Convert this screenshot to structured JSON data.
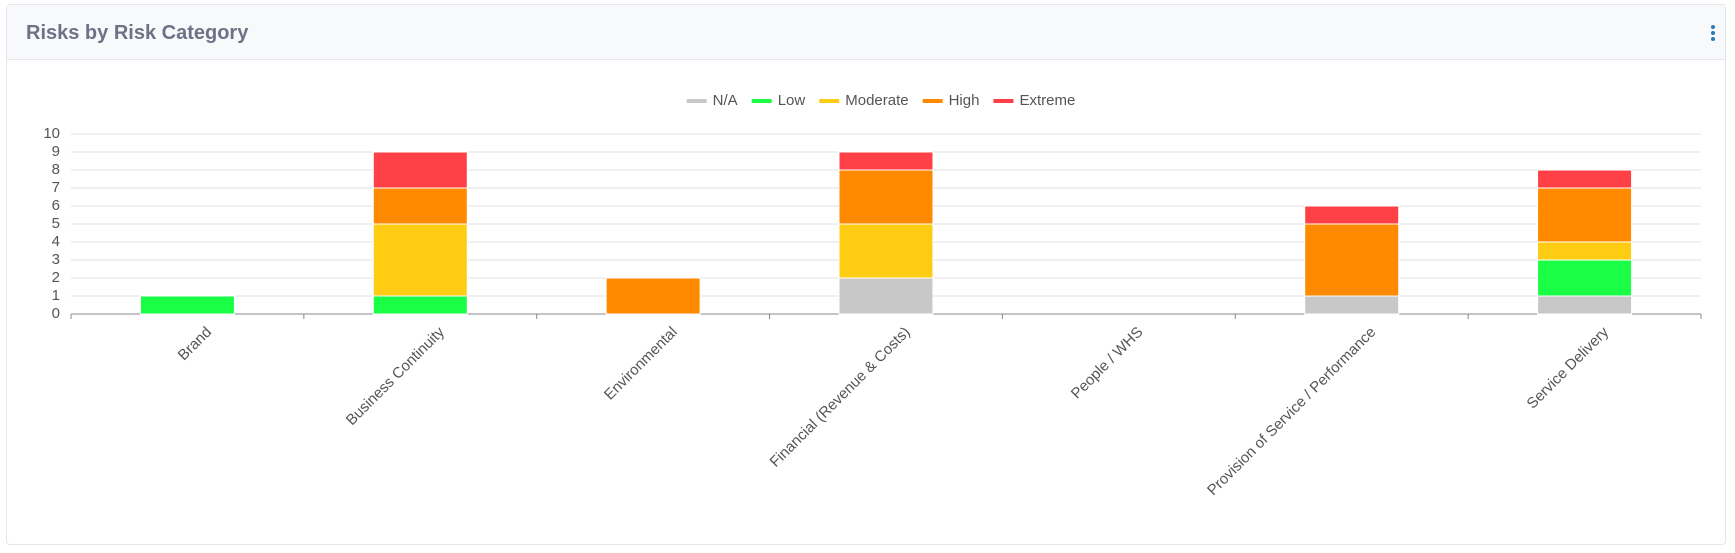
{
  "chart_data": {
    "type": "stacked_bar",
    "title": "Risks by Risk Category",
    "categories": [
      "Brand",
      "Business Continuity",
      "Environmental",
      "Financial (Revenue & Costs)",
      "People / WHS",
      "Provision of Service / Performance",
      "Service Delivery"
    ],
    "series": [
      {
        "name": "N/A",
        "color": "#c8c8c8",
        "values": [
          0,
          0,
          0,
          2,
          0,
          1,
          1
        ]
      },
      {
        "name": "Low",
        "color": "#1aff45",
        "values": [
          1,
          1,
          0,
          0,
          0,
          0,
          2
        ]
      },
      {
        "name": "Moderate",
        "color": "#ffcc14",
        "values": [
          0,
          4,
          0,
          3,
          0,
          0,
          1
        ]
      },
      {
        "name": "High",
        "color": "#ff8a00",
        "values": [
          0,
          2,
          2,
          3,
          0,
          4,
          3
        ]
      },
      {
        "name": "Extreme",
        "color": "#ff4046",
        "values": [
          0,
          2,
          0,
          1,
          0,
          1,
          1
        ]
      }
    ],
    "ylim": [
      0,
      10
    ],
    "yticks": [
      0,
      1,
      2,
      3,
      4,
      5,
      6,
      7,
      8,
      9,
      10
    ],
    "grid": true,
    "legend": "top"
  }
}
